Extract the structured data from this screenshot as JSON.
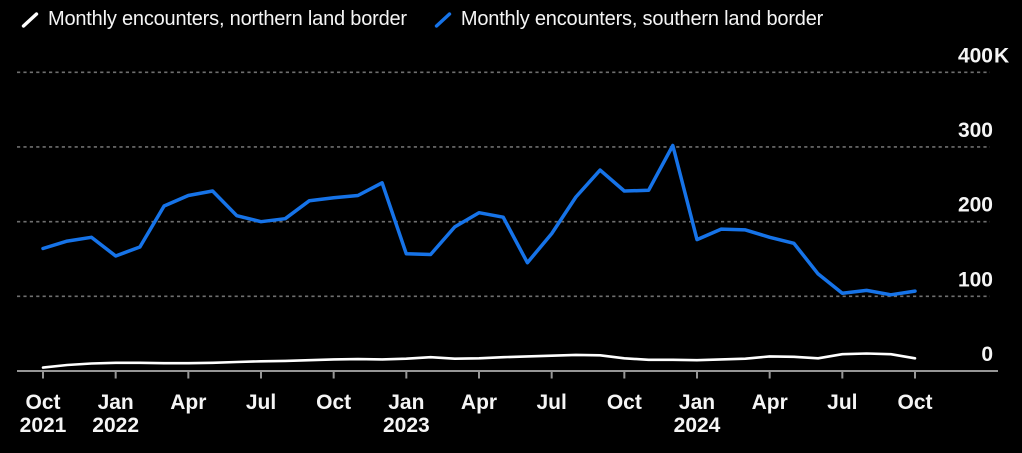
{
  "legend": {
    "items": [
      {
        "id": "northern",
        "label": "Monthly encounters, northern land border",
        "color": "#ffffff"
      },
      {
        "id": "southern",
        "label": "Monthly encounters, southern land border",
        "color": "#1673e8"
      }
    ]
  },
  "colors": {
    "background": "#000000",
    "tick_label": "#f5f5f5",
    "gridline": "#6f6f6f",
    "axis": "#969696",
    "northern_line": "#ffffff",
    "southern_line": "#1673e8"
  },
  "chart_data": {
    "type": "line",
    "unit": "thousands of encounters",
    "grid": "dotted horizontal gridlines, solid zero axis",
    "legend_position": "top",
    "ylim": [
      0,
      400
    ],
    "x": [
      "Oct 2021",
      "Nov 2021",
      "Dec 2021",
      "Jan 2022",
      "Feb 2022",
      "Mar 2022",
      "Apr 2022",
      "May 2022",
      "Jun 2022",
      "Jul 2022",
      "Aug 2022",
      "Sep 2022",
      "Oct 2022",
      "Nov 2022",
      "Dec 2022",
      "Jan 2023",
      "Feb 2023",
      "Mar 2023",
      "Apr 2023",
      "May 2023",
      "Jun 2023",
      "Jul 2023",
      "Aug 2023",
      "Sep 2023",
      "Oct 2023",
      "Nov 2023",
      "Dec 2023",
      "Jan 2024",
      "Feb 2024",
      "Mar 2024",
      "Apr 2024",
      "May 2024",
      "Jun 2024",
      "Jul 2024",
      "Aug 2024",
      "Sep 2024",
      "Oct 2024"
    ],
    "series": [
      {
        "name": "Monthly encounters, northern land border",
        "color": "#ffffff",
        "width": 2.6,
        "values": [
          4.5,
          8,
          10,
          11,
          11,
          10.5,
          10.5,
          11,
          12,
          13,
          13.5,
          14.5,
          15.5,
          16,
          15.5,
          16.5,
          18.5,
          16.5,
          17,
          18.5,
          19.5,
          20.5,
          21.5,
          21,
          17,
          15,
          15,
          14.5,
          15.5,
          16.5,
          19.5,
          19,
          17,
          22.5,
          23.5,
          22.5,
          17
        ]
      },
      {
        "name": "Monthly encounters, southern land border",
        "color": "#1673e8",
        "width": 3.5,
        "values": [
          164,
          174,
          179,
          154,
          166,
          221,
          235,
          241,
          208,
          200,
          204,
          228,
          232,
          235,
          252,
          157,
          156,
          193,
          212,
          206,
          145,
          184,
          233,
          269,
          241,
          242,
          302,
          176,
          190,
          189,
          179,
          171,
          130,
          104,
          108,
          102,
          107
        ]
      }
    ],
    "yticks": [
      {
        "value": 0,
        "label": "0",
        "suffix": ""
      },
      {
        "value": 100,
        "label": "100",
        "suffix": ""
      },
      {
        "value": 200,
        "label": "200",
        "suffix": ""
      },
      {
        "value": 300,
        "label": "300",
        "suffix": ""
      },
      {
        "value": 400,
        "label": "400",
        "suffix": "K"
      }
    ],
    "xticks": [
      {
        "index": 0,
        "month": "Oct",
        "year": "2021"
      },
      {
        "index": 3,
        "month": "Jan",
        "year": "2022"
      },
      {
        "index": 6,
        "month": "Apr",
        "year": ""
      },
      {
        "index": 9,
        "month": "Jul",
        "year": ""
      },
      {
        "index": 12,
        "month": "Oct",
        "year": ""
      },
      {
        "index": 15,
        "month": "Jan",
        "year": "2023"
      },
      {
        "index": 18,
        "month": "Apr",
        "year": ""
      },
      {
        "index": 21,
        "month": "Jul",
        "year": ""
      },
      {
        "index": 24,
        "month": "Oct",
        "year": ""
      },
      {
        "index": 27,
        "month": "Jan",
        "year": "2024"
      },
      {
        "index": 30,
        "month": "Apr",
        "year": ""
      },
      {
        "index": 33,
        "month": "Jul",
        "year": ""
      },
      {
        "index": 36,
        "month": "Oct",
        "year": ""
      }
    ]
  }
}
